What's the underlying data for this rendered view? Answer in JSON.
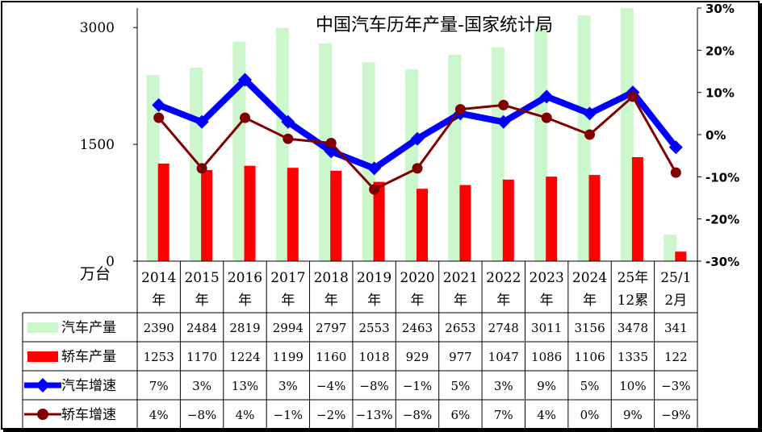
{
  "chart_data": {
    "type": "bar",
    "title": "中国汽车历年产量-国家统计局",
    "ylabel": "万台",
    "ylim": [
      0,
      3250
    ],
    "y_ticks": [
      "0",
      "1500",
      "3000"
    ],
    "y2lim": [
      -30,
      30
    ],
    "y2_ticks": [
      "-30%",
      "-20%",
      "-10%",
      "0%",
      "10%",
      "20%",
      "30%"
    ],
    "categories": [
      "2014年",
      "2015年",
      "2016年",
      "2017年",
      "2018年",
      "2019年",
      "2020年",
      "2021年",
      "2022年",
      "2023年",
      "2024年",
      "25年12累",
      "25/12月"
    ],
    "category_lines": [
      [
        "2014",
        "年"
      ],
      [
        "2015",
        "年"
      ],
      [
        "2016",
        "年"
      ],
      [
        "2017",
        "年"
      ],
      [
        "2018",
        "年"
      ],
      [
        "2019",
        "年"
      ],
      [
        "2020",
        "年"
      ],
      [
        "2021",
        "年"
      ],
      [
        "2022",
        "年"
      ],
      [
        "2023",
        "年"
      ],
      [
        "2024",
        "年"
      ],
      [
        "25年",
        "12累"
      ],
      [
        "25/1",
        "2月"
      ]
    ],
    "series": [
      {
        "name": "汽车产量",
        "kind": "bar",
        "axis": "left",
        "color": "#ccf7cc",
        "values": [
          2390,
          2484,
          2819,
          2994,
          2797,
          2553,
          2463,
          2653,
          2748,
          3011,
          3156,
          3478,
          341
        ],
        "labels": [
          "2390",
          "2484",
          "2819",
          "2994",
          "2797",
          "2553",
          "2463",
          "2653",
          "2748",
          "3011",
          "3156",
          "3478",
          "341"
        ]
      },
      {
        "name": "轿车产量",
        "kind": "bar",
        "axis": "left",
        "color": "#ff0000",
        "values": [
          1253,
          1170,
          1224,
          1199,
          1160,
          1018,
          929,
          977,
          1047,
          1086,
          1106,
          1335,
          122
        ],
        "labels": [
          "1253",
          "1170",
          "1224",
          "1199",
          "1160",
          "1018",
          "929",
          "977",
          "1047",
          "1086",
          "1106",
          "1335",
          "122"
        ]
      },
      {
        "name": "汽车增速",
        "kind": "line",
        "axis": "right",
        "color": "#0000ff",
        "values": [
          7,
          3,
          13,
          3,
          -4,
          -8,
          -1,
          5,
          3,
          9,
          5,
          10,
          -3
        ],
        "labels": [
          "7%",
          "3%",
          "13%",
          "3%",
          "-4%",
          "-8%",
          "-1%",
          "5%",
          "3%",
          "9%",
          "5%",
          "10%",
          "-3%"
        ]
      },
      {
        "name": "轿车增速",
        "kind": "line",
        "axis": "right",
        "color": "#800000",
        "values": [
          4,
          -8,
          4,
          -1,
          -2,
          -13,
          -8,
          6,
          7,
          4,
          0,
          9,
          -9
        ],
        "labels": [
          "4%",
          "-8%",
          "4%",
          "-1%",
          "-2%",
          "-13%",
          "-8%",
          "6%",
          "7%",
          "4%",
          "0%",
          "9%",
          "-9%"
        ]
      }
    ],
    "legend": "data-table-left",
    "grid": false
  }
}
